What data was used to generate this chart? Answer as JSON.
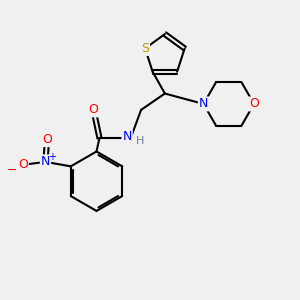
{
  "bg_color": "#f0f0f0",
  "atom_colors": {
    "C": "#000000",
    "N": "#0000ff",
    "O": "#ff0000",
    "S": "#b8a000",
    "H": "#708090"
  },
  "bond_color": "#000000",
  "bond_width": 1.5,
  "dbo": 0.07
}
